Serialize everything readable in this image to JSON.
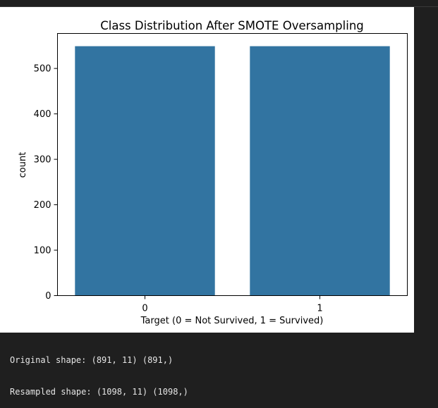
{
  "chart_data": {
    "type": "bar",
    "title": "Class Distribution After SMOTE Oversampling",
    "xlabel": "Target (0 = Not Survived, 1 = Survived)",
    "ylabel": "count",
    "categories": [
      "0",
      "1"
    ],
    "values": [
      549,
      549
    ],
    "ylim": [
      0,
      577
    ],
    "yticks": [
      0,
      100,
      200,
      300,
      400,
      500
    ],
    "grid": false,
    "bar_color": "#3274a1"
  },
  "console": {
    "lines": [
      "Original shape: (891, 11) (891,)",
      "Resampled shape: (1098, 11) (1098,)"
    ]
  }
}
